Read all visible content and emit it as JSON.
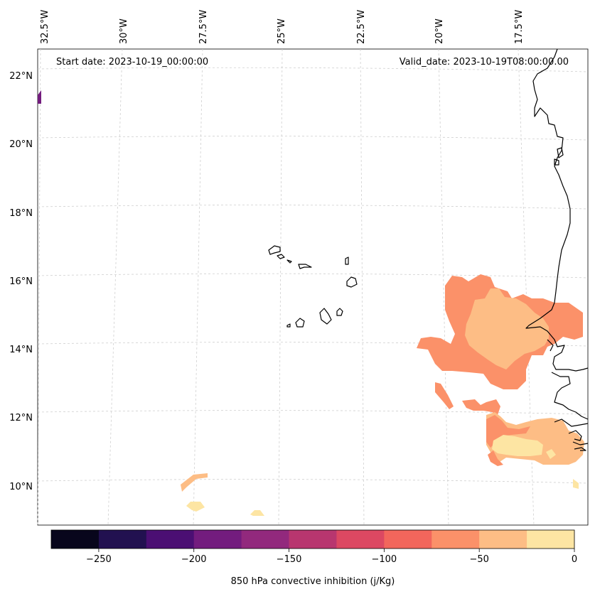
{
  "header": {
    "start_date": "Start date: 2023-10-19_00:00:00",
    "valid_date": "Valid_date: 2023-10-19T08:00:00.00"
  },
  "lon_labels": [
    "32.5°W",
    "30°W",
    "27.5°W",
    "25°W",
    "22.5°W",
    "20°W",
    "17.5°W"
  ],
  "lat_labels": [
    "22°N",
    "20°N",
    "18°N",
    "16°N",
    "14°N",
    "12°N",
    "10°N"
  ],
  "colorbar": {
    "label": "850 hPa convective inhibition (j/Kg)",
    "tick_labels": [
      "−250",
      "−200",
      "−150",
      "−100",
      "−50",
      "0"
    ],
    "levels": [
      -275,
      -250,
      -225,
      -200,
      -175,
      -150,
      -125,
      -100,
      -75,
      -50,
      -25,
      0
    ],
    "colors": [
      "#08061c",
      "#221150",
      "#4b0f73",
      "#731c7e",
      "#92297d",
      "#b8366f",
      "#dc4862",
      "#f2665c",
      "#fb9169",
      "#fdbd85",
      "#fde5a3"
    ]
  },
  "palette": {
    "coastline": "#000000",
    "gridline": "#cfcfcf"
  }
}
